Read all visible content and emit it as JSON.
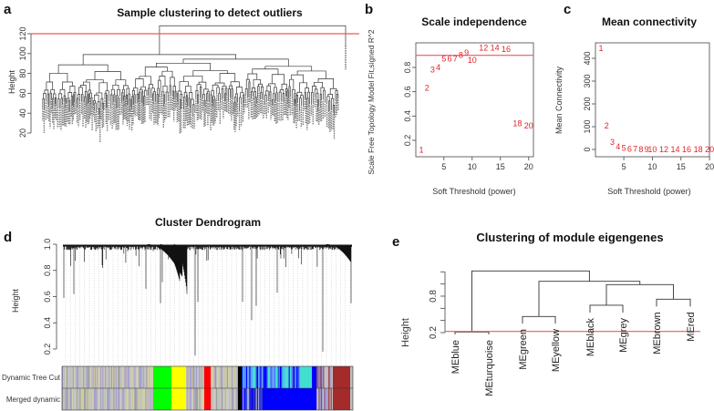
{
  "chart_data": [
    {
      "panel": "a",
      "type": "dendrogram",
      "title": "Sample clustering to detect outliers",
      "ylabel": "Height",
      "yticks": [
        "20",
        "40",
        "60",
        "80",
        "100",
        "120"
      ],
      "ylim": [
        20,
        130
      ],
      "cut_height": 120,
      "cut_color": "#f0575a"
    },
    {
      "panel": "b",
      "type": "scatter",
      "title": "Scale independence",
      "xlabel": "Soft Threshold (power)",
      "ylabel": "Scale Free Topology Model Fit,signed R^2",
      "xticks": [
        "5",
        "10",
        "15",
        "20"
      ],
      "yticks": [
        "0.2",
        "0.4",
        "0.6",
        "0.8"
      ],
      "xlim": [
        1,
        20
      ],
      "ylim": [
        0.1,
        0.97
      ],
      "hline": 0.9,
      "points": [
        {
          "label": "1",
          "x": 1,
          "y": 0.12
        },
        {
          "label": "2",
          "x": 2,
          "y": 0.63
        },
        {
          "label": "3",
          "x": 3,
          "y": 0.78
        },
        {
          "label": "4",
          "x": 4,
          "y": 0.8
        },
        {
          "label": "5",
          "x": 5,
          "y": 0.87
        },
        {
          "label": "6",
          "x": 6,
          "y": 0.87
        },
        {
          "label": "7",
          "x": 7,
          "y": 0.87
        },
        {
          "label": "8",
          "x": 8,
          "y": 0.9
        },
        {
          "label": "9",
          "x": 9,
          "y": 0.92
        },
        {
          "label": "10",
          "x": 10,
          "y": 0.86
        },
        {
          "label": "12",
          "x": 12,
          "y": 0.96
        },
        {
          "label": "14",
          "x": 14,
          "y": 0.96
        },
        {
          "label": "16",
          "x": 16,
          "y": 0.95
        },
        {
          "label": "18",
          "x": 18,
          "y": 0.34
        },
        {
          "label": "20",
          "x": 20,
          "y": 0.32
        }
      ]
    },
    {
      "panel": "c",
      "type": "scatter",
      "title": "Mean connectivity",
      "xlabel": "Soft Threshold (power)",
      "ylabel": "Mean Connectivity",
      "xticks": [
        "5",
        "10",
        "15",
        "20"
      ],
      "yticks": [
        "0",
        "100",
        "200",
        "300",
        "400"
      ],
      "xlim": [
        1,
        20
      ],
      "ylim": [
        0,
        450
      ],
      "points": [
        {
          "label": "1",
          "x": 1,
          "y": 445
        },
        {
          "label": "2",
          "x": 2,
          "y": 105
        },
        {
          "label": "3",
          "x": 3,
          "y": 32
        },
        {
          "label": "4",
          "x": 4,
          "y": 13
        },
        {
          "label": "5",
          "x": 5,
          "y": 6
        },
        {
          "label": "6",
          "x": 6,
          "y": 3
        },
        {
          "label": "7",
          "x": 7,
          "y": 2
        },
        {
          "label": "8",
          "x": 8,
          "y": 1
        },
        {
          "label": "9",
          "x": 9,
          "y": 1
        },
        {
          "label": "10",
          "x": 10,
          "y": 1
        },
        {
          "label": "12",
          "x": 12,
          "y": 1
        },
        {
          "label": "14",
          "x": 14,
          "y": 1
        },
        {
          "label": "16",
          "x": 16,
          "y": 1
        },
        {
          "label": "18",
          "x": 18,
          "y": 1
        },
        {
          "label": "20",
          "x": 20,
          "y": 1
        }
      ]
    },
    {
      "panel": "d",
      "type": "dendrogram",
      "title": "Cluster Dendrogram",
      "ylabel": "Height",
      "yticks": [
        "0.2",
        "0.4",
        "0.6",
        "0.8",
        "1.0"
      ],
      "ylim": [
        0.1,
        1.0
      ],
      "color_rows": [
        "Dynamic Tree Cut",
        "Merged dynamic"
      ],
      "module_colors": {
        "grey": "#bebebe",
        "green": "#00ff00",
        "yellow": "#ffff00",
        "red": "#ff0000",
        "black": "#000000",
        "blue": "#0000ff",
        "turquoise": "#40e0d0",
        "brown": "#a52a2a"
      }
    },
    {
      "panel": "e",
      "type": "dendrogram",
      "title": "Clustering of module eigengenes",
      "ylabel": "Height",
      "yticks": [
        "0.2",
        "0.8"
      ],
      "ylim": [
        0.2,
        1.2
      ],
      "cut_height": 0.22,
      "leaves": [
        "MEblue",
        "MEturquoise",
        "MEgreen",
        "MEyellow",
        "MEblack",
        "MEgrey",
        "MEbrown",
        "MEred"
      ],
      "merges": [
        {
          "a": "MEblue",
          "b": "MEturquoise",
          "height": 0.21
        },
        {
          "a": "MEgreen",
          "b": "MEyellow",
          "height": 0.465
        },
        {
          "a": "MEblack",
          "b": "MEgrey",
          "height": 0.65
        },
        {
          "a": "MEbrown",
          "b": "MEred",
          "height": 0.75
        },
        {
          "a": "black+grey",
          "b": "brown+red",
          "height": 0.99
        },
        {
          "a": "green+yellow",
          "b": "black+grey+brown+red",
          "height": 1.045
        },
        {
          "a": "blue+turquoise",
          "b": "rest",
          "height": 1.215
        }
      ]
    }
  ],
  "panel_letters": [
    "a",
    "b",
    "c",
    "d",
    "e"
  ]
}
